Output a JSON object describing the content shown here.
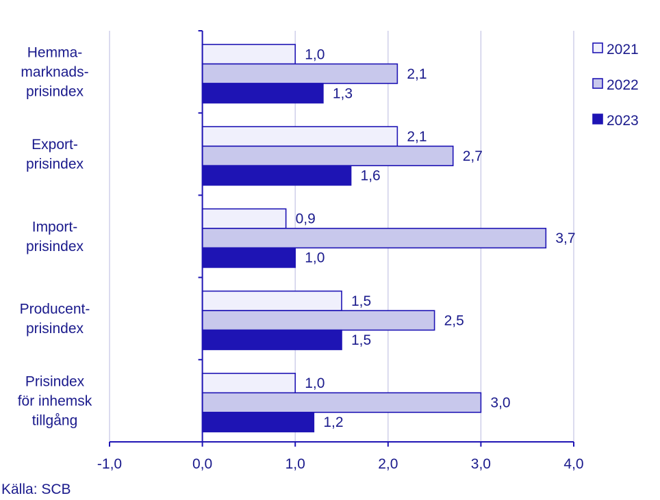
{
  "chart_data": {
    "type": "bar",
    "orientation": "horizontal",
    "categories": [
      [
        "Hemma-",
        "marknads-",
        "prisindex"
      ],
      [
        "Export-",
        "prisindex"
      ],
      [
        "Import-",
        "prisindex"
      ],
      [
        "Producent-",
        "prisindex"
      ],
      [
        "Prisindex",
        "för inhemsk",
        "tillgång"
      ]
    ],
    "series": [
      {
        "name": "2021",
        "color": "#f0f0fc",
        "values": [
          1.0,
          2.1,
          0.9,
          1.5,
          1.0
        ]
      },
      {
        "name": "2022",
        "color": "#c8c8ec",
        "values": [
          2.1,
          2.7,
          3.7,
          2.5,
          3.0
        ]
      },
      {
        "name": "2023",
        "color": "#1e14b4",
        "values": [
          1.3,
          1.6,
          1.0,
          1.5,
          1.2
        ]
      }
    ],
    "xlim": [
      -1.0,
      4.0
    ],
    "xticks": [
      "-1,0",
      "0,0",
      "1,0",
      "2,0",
      "3,0",
      "4,0"
    ],
    "grid": true,
    "legend": "top-right",
    "decimal_separator": ","
  },
  "source": "Källa: SCB"
}
